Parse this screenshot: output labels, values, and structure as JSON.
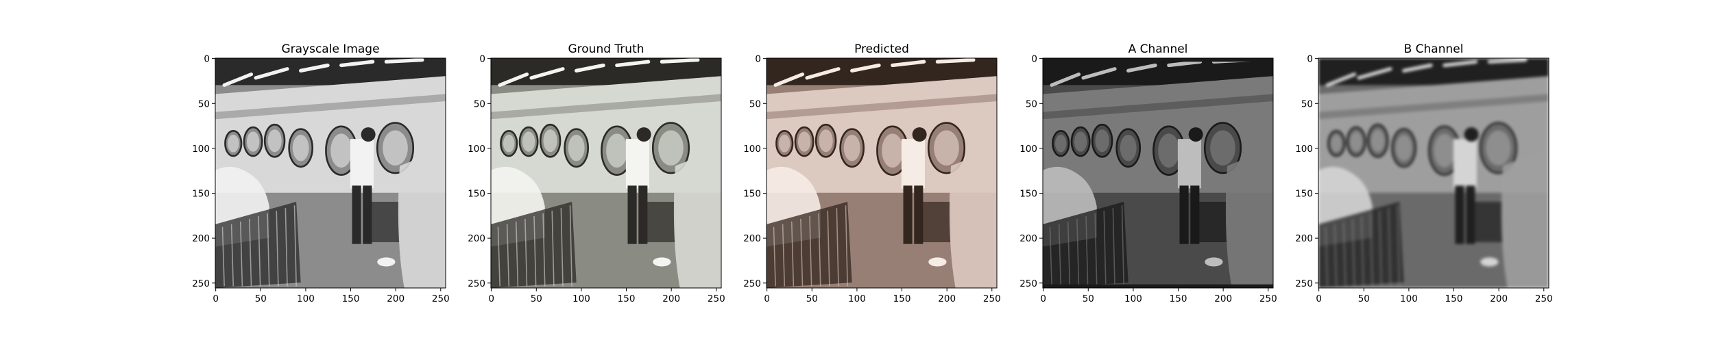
{
  "chart_data": [
    {
      "type": "image",
      "title": "Grayscale Image",
      "xlim": [
        0,
        256
      ],
      "ylim": [
        256,
        0
      ],
      "xticks": [
        0,
        50,
        100,
        150,
        200,
        250
      ],
      "yticks": [
        0,
        50,
        100,
        150,
        200,
        250
      ],
      "colormap": "gray",
      "content": "laundromat scene, grayscale",
      "palette": [
        "#2a2a2a",
        "#8c8c8c",
        "#d8d8d8",
        "#f2f2f2"
      ]
    },
    {
      "type": "image",
      "title": "Ground Truth",
      "xlim": [
        0,
        256
      ],
      "ylim": [
        256,
        0
      ],
      "xticks": [
        0,
        50,
        100,
        150,
        200,
        250
      ],
      "yticks": [
        0,
        50,
        100,
        150,
        200,
        250
      ],
      "colormap": "rgb",
      "content": "laundromat scene, original color",
      "palette": [
        "#2c2a26",
        "#8a8c84",
        "#d6d8d2",
        "#f4f5f0"
      ]
    },
    {
      "type": "image",
      "title": "Predicted",
      "xlim": [
        0,
        256
      ],
      "ylim": [
        256,
        0
      ],
      "xticks": [
        0,
        50,
        100,
        150,
        200,
        250
      ],
      "yticks": [
        0,
        50,
        100,
        150,
        200,
        250
      ],
      "colormap": "rgb",
      "content": "laundromat scene, predicted color with reddish tint",
      "palette": [
        "#33261f",
        "#977f76",
        "#dcc9bf",
        "#f5ece5"
      ]
    },
    {
      "type": "image",
      "title": "A Channel",
      "xlim": [
        0,
        256
      ],
      "ylim": [
        256,
        0
      ],
      "xticks": [
        0,
        50,
        100,
        150,
        200,
        250
      ],
      "yticks": [
        0,
        50,
        100,
        150,
        200,
        250
      ],
      "colormap": "gray",
      "content": "a-channel of predicted Lab image, dark grey",
      "palette": [
        "#1a1a1a",
        "#4a4a4a",
        "#7a7a7a",
        "#bdbdbd"
      ]
    },
    {
      "type": "image",
      "title": "B Channel",
      "xlim": [
        0,
        256
      ],
      "ylim": [
        256,
        0
      ],
      "xticks": [
        0,
        50,
        100,
        150,
        200,
        250
      ],
      "yticks": [
        0,
        50,
        100,
        150,
        200,
        250
      ],
      "colormap": "gray",
      "content": "b-channel of predicted Lab image, blurry mid grey",
      "palette": [
        "#202020",
        "#6a6a6a",
        "#9e9e9e",
        "#d4d4d4"
      ]
    }
  ]
}
